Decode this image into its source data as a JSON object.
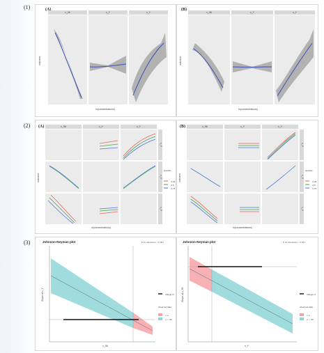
{
  "sections": {
    "one": {
      "label": "(1)",
      "panels": [
        {
          "tag": "(A)",
          "strips": [
            "x_96",
            "x_Y",
            "x_Y"
          ],
          "ylabel": "outcome",
          "xlabel": "ln(concentrations)"
        },
        {
          "tag": "(B)",
          "strips": [
            "x_96",
            "x_Y",
            "x_Y"
          ],
          "ylabel": "outcome",
          "xlabel": "ln(concentrations)"
        }
      ]
    },
    "two": {
      "label": "(2)",
      "panels": [
        {
          "tag": "(A)",
          "strips": [
            "x_96",
            "x_Y",
            "x_Y"
          ],
          "row_strips": [
            "x_Y",
            "x_Y",
            "x_Y"
          ],
          "ylabel": "outcome",
          "xlabel": "ln(concentrations)",
          "legend": {
            "title": "quantile",
            "items": [
              "0.25",
              "0.5",
              "0.75"
            ]
          }
        },
        {
          "tag": "(B)",
          "strips": [
            "x_96",
            "x_Y",
            "x_Y"
          ],
          "row_strips": [
            "x_Y",
            "x_Y",
            "x_Y"
          ],
          "ylabel": "outcome",
          "xlabel": "ln(concentrations)",
          "legend": {
            "title": "quantile",
            "items": [
              "0.25",
              "0.5",
              "0.75"
            ]
          }
        }
      ]
    },
    "three": {
      "label": "(3)",
      "panels": [
        {
          "title": "Johnson-Neyman plot",
          "p_text": "P for interaction < 0.001",
          "ylabel": "Slope of x_Y",
          "xlabel": "x_96",
          "legend_range": "Range of observed data",
          "legend_items": [
            "n.s.",
            "p < .05"
          ]
        },
        {
          "title": "Johnson-Neyman plot",
          "p_text": "P for interaction < 0.001",
          "ylabel": "Slope of x_96",
          "xlabel": "x_Y",
          "legend_range": "Range of observed data",
          "legend_items": [
            "n.s.",
            "p < .05"
          ]
        }
      ]
    }
  },
  "colors": {
    "line_blue": "#3a4fb5",
    "ribbon": "#9a9a9a",
    "q_low": "#e8625a",
    "q_mid": "#3fa84a",
    "q_high": "#4a74d6",
    "jn_sig": "#8fd6d8",
    "jn_ns": "#f6a3a8"
  }
}
